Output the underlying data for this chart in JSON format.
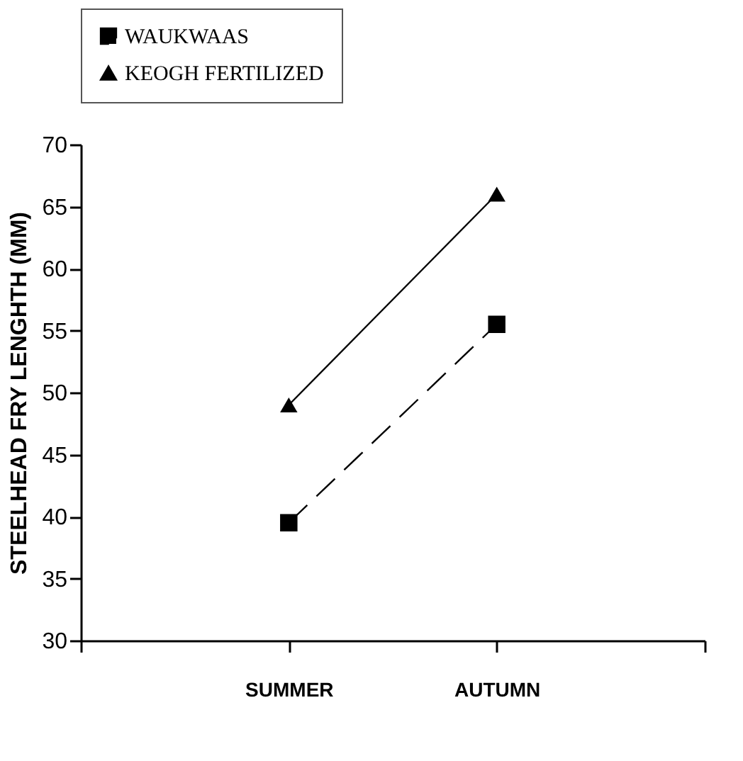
{
  "chart_data": {
    "type": "line",
    "categories": [
      "SUMMER",
      "AUTUMN"
    ],
    "ylabel": "STEELHEAD FRY LENGHTH (MM)",
    "ylim": [
      30,
      70
    ],
    "yticks": [
      30,
      35,
      40,
      45,
      50,
      55,
      60,
      65,
      70
    ],
    "grid": false,
    "legend": "top",
    "series": [
      {
        "name": "WAUKWAAS",
        "color": "#000000",
        "values": [
          39.5,
          55.5
        ],
        "marker": "square",
        "line_style": "dashed"
      },
      {
        "name": "KEOGH FERTILIZED",
        "color": "#000000",
        "values": [
          49,
          66
        ],
        "marker": "triangle",
        "line_style": "solid"
      }
    ]
  }
}
